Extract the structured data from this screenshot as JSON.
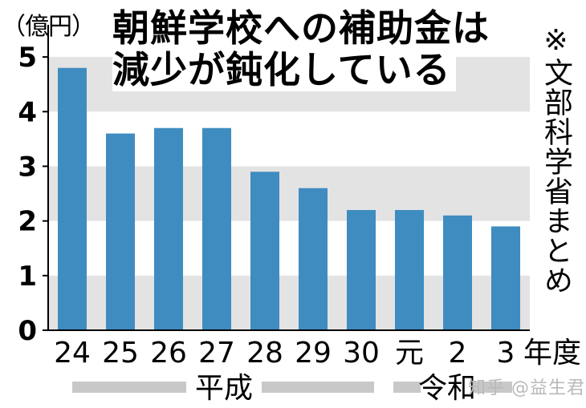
{
  "chart_data": {
    "type": "bar",
    "title_lines": [
      "朝鮮学校への補助金は",
      "減少が鈍化している"
    ],
    "unit_label": "（億円）",
    "source_note": "※文部科学省まとめ",
    "categories": [
      "24",
      "25",
      "26",
      "27",
      "28",
      "29",
      "30",
      "元",
      "2",
      "3"
    ],
    "category_suffix": "年度",
    "values": [
      4.8,
      3.6,
      3.7,
      3.7,
      2.9,
      2.6,
      2.2,
      2.2,
      2.1,
      1.9
    ],
    "era_labels": [
      "平成",
      "令和"
    ],
    "yticks": [
      "0",
      "1",
      "2",
      "3",
      "4",
      "5"
    ],
    "ylim": [
      0,
      5.5
    ],
    "bar_color": "#3f8cc0",
    "band_color": "#e3e3e3",
    "era_bar_color": "#c8c8c8",
    "grid": "alternating horizontal bands"
  },
  "watermark": "知乎 @益生君"
}
